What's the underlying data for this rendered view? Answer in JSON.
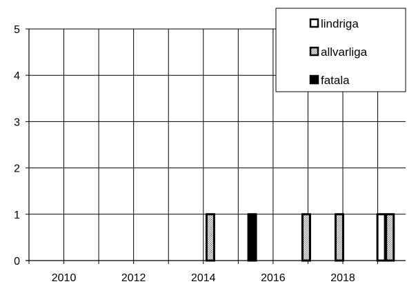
{
  "chart_data": {
    "type": "bar",
    "xlim": [
      2009,
      2019.8
    ],
    "ylim": [
      0,
      5
    ],
    "grid": true,
    "legend_position": "top-right",
    "x_ticks": [
      2010,
      2012,
      2014,
      2016,
      2018
    ],
    "x_tick_labels": [
      "2010",
      "2012",
      "2014",
      "2016",
      "2018"
    ],
    "y_ticks": [
      0,
      1,
      2,
      3,
      4,
      5
    ],
    "y_tick_labels": [
      "0",
      "1",
      "2",
      "3",
      "4",
      "5"
    ],
    "series": [
      {
        "name": "lindriga",
        "pattern": "white",
        "points": [
          {
            "x": 2019.1,
            "y": 1
          }
        ]
      },
      {
        "name": "allvarliga",
        "pattern": "dotted-gray",
        "points": [
          {
            "x": 2014.2,
            "y": 1
          },
          {
            "x": 2016.95,
            "y": 1
          },
          {
            "x": 2017.9,
            "y": 1
          },
          {
            "x": 2019.35,
            "y": 1
          }
        ]
      },
      {
        "name": "fatala",
        "pattern": "black",
        "points": [
          {
            "x": 2015.4,
            "y": 1
          }
        ]
      }
    ],
    "colors": {
      "axis": "#000000",
      "grid": "#000000",
      "bar_edge": "#000000",
      "white_fill": "#ffffff",
      "dot_fill": "#c8c8c8",
      "black_fill": "#000000"
    }
  }
}
